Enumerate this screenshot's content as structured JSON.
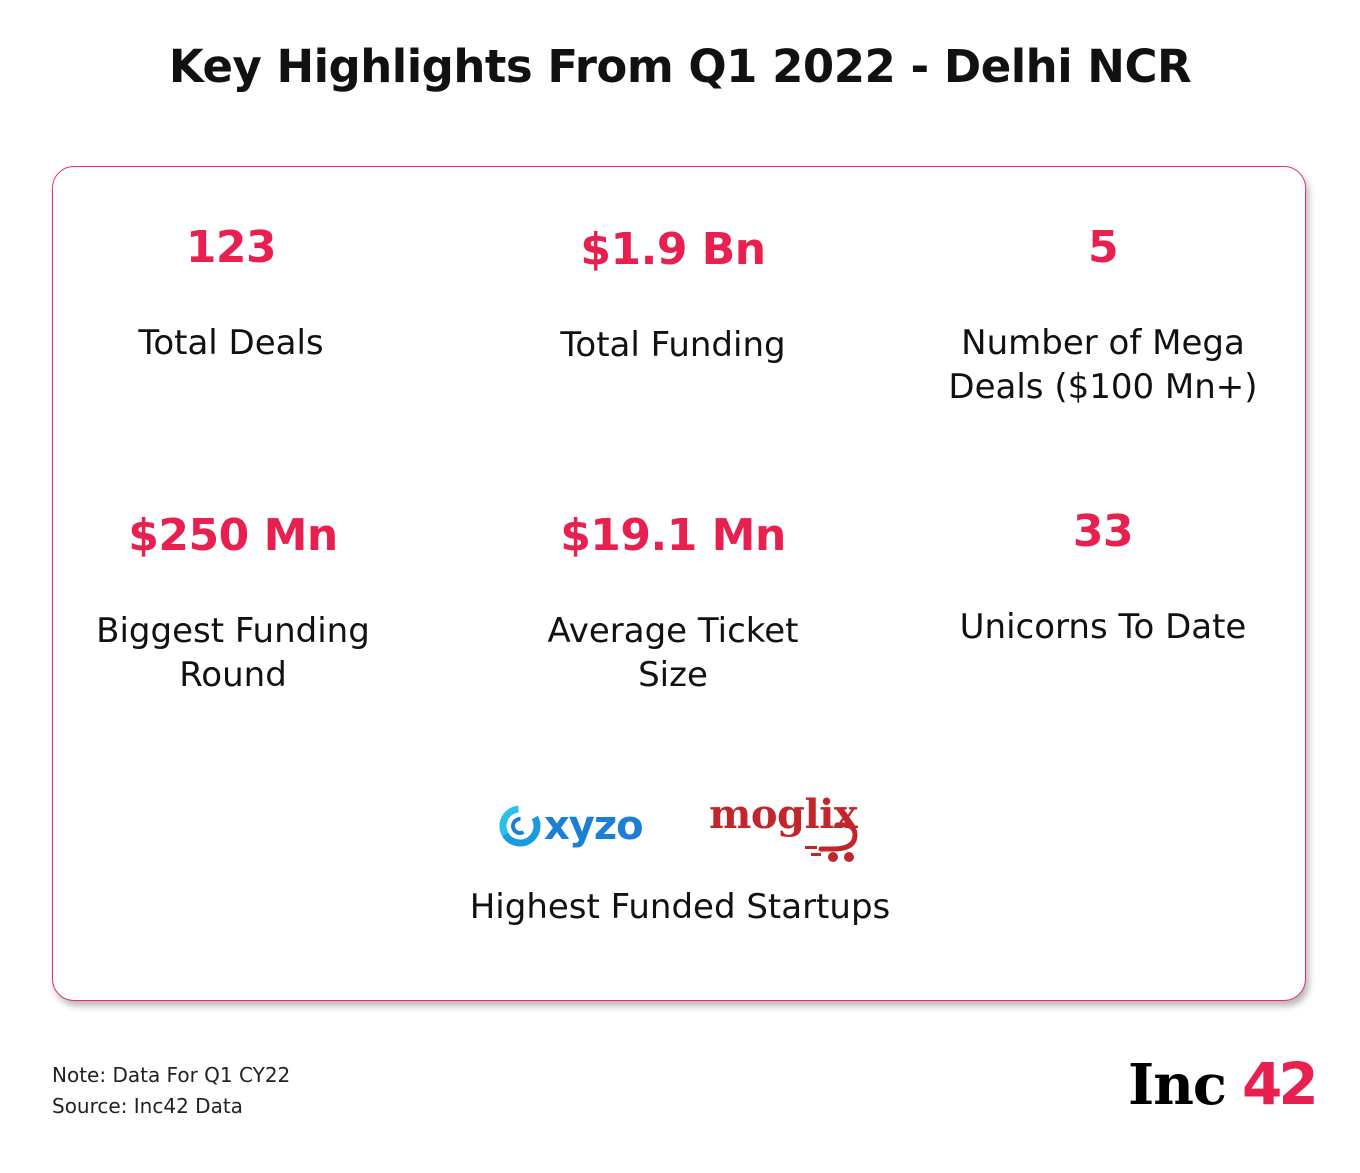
{
  "title": "Key Highlights From Q1 2022 - Delhi NCR",
  "accent_color": "#e8204f",
  "stats": [
    {
      "value": "123",
      "label": "Total Deals"
    },
    {
      "value": "$1.9 Bn",
      "label": "Total Funding"
    },
    {
      "value": "5",
      "label": "Number of Mega\nDeals ($100 Mn+)"
    },
    {
      "value": "$250 Mn",
      "label": "Biggest Funding\nRound"
    },
    {
      "value": "$19.1 Mn",
      "label": "Average Ticket\nSize"
    },
    {
      "value": "33",
      "label": "Unicorns To Date"
    }
  ],
  "startups": {
    "logos": [
      {
        "name": "xyzo",
        "icon": "oxyzo-swirl-logo",
        "color": "#1c7fd6"
      },
      {
        "name": "moglix",
        "icon": "moglix-cart-logo",
        "color": "#c0262c"
      }
    ],
    "caption": "Highest Funded Startups"
  },
  "notes": {
    "note": "Note: Data For Q1 CY22",
    "source": "Source: Inc42 Data"
  },
  "brand": {
    "inc": "Inc",
    "num": "42"
  }
}
